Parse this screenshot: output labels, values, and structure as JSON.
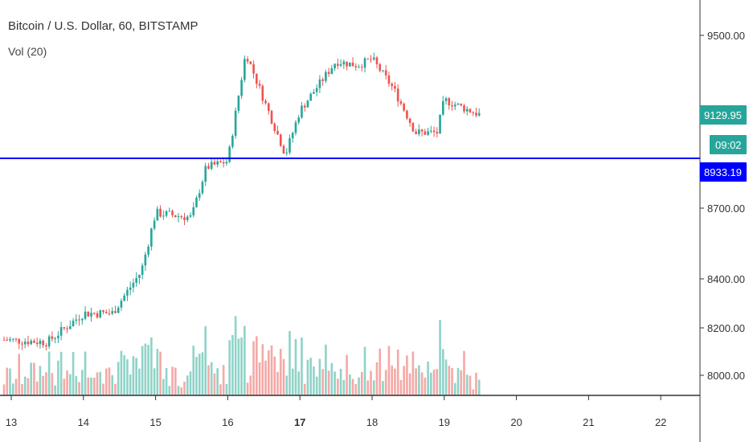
{
  "legend": {
    "title": "Bitcoin / U.S. Dollar, 60, BITSTAMP",
    "volume": "Vol (20)"
  },
  "colors": {
    "up": "#26a69a",
    "down": "#ef5350",
    "vol_up": "#8fd3c8",
    "vol_down": "#f4a9a6",
    "level_line": "#0000ff",
    "last_price_badge": "#26a69a",
    "level_badge": "#0000ff",
    "axis": "#333333"
  },
  "chart_data": {
    "type": "candlestick",
    "symbol": "Bitcoin / U.S. Dollar",
    "interval": "60",
    "exchange": "BITSTAMP",
    "price_ticks": [
      9500,
      8700,
      8400,
      8200,
      8000
    ],
    "price_tick_labels": [
      "9500.00",
      "8700.00",
      "8400.00",
      "8200.00",
      "8000.00"
    ],
    "x_ticks": [
      13,
      14,
      15,
      16,
      17,
      18,
      19,
      20,
      21,
      22
    ],
    "x_tick_labels": [
      "13",
      "14",
      "15",
      "16",
      "17",
      "18",
      "19",
      "20",
      "21",
      "22"
    ],
    "last_price": 9129.95,
    "last_price_label": "9129.95",
    "countdown_label": "09:02",
    "horizontal_level": 8933.19,
    "horizontal_level_label": "8933.19",
    "key_points": [
      {
        "day": 12.9,
        "price": 8150
      },
      {
        "day": 13.5,
        "price": 8140
      },
      {
        "day": 14.0,
        "price": 8260
      },
      {
        "day": 14.4,
        "price": 8260
      },
      {
        "day": 14.8,
        "price": 8430
      },
      {
        "day": 15.0,
        "price": 8680
      },
      {
        "day": 15.5,
        "price": 8660
      },
      {
        "day": 15.7,
        "price": 8890
      },
      {
        "day": 16.0,
        "price": 8920
      },
      {
        "day": 16.25,
        "price": 9420
      },
      {
        "day": 16.5,
        "price": 9200
      },
      {
        "day": 16.8,
        "price": 8950
      },
      {
        "day": 17.0,
        "price": 9150
      },
      {
        "day": 17.5,
        "price": 9380
      },
      {
        "day": 17.8,
        "price": 9360
      },
      {
        "day": 18.0,
        "price": 9390
      },
      {
        "day": 18.3,
        "price": 9250
      },
      {
        "day": 18.6,
        "price": 9050
      },
      {
        "day": 18.9,
        "price": 9050
      },
      {
        "day": 19.0,
        "price": 9200
      },
      {
        "day": 19.5,
        "price": 9130
      }
    ]
  }
}
